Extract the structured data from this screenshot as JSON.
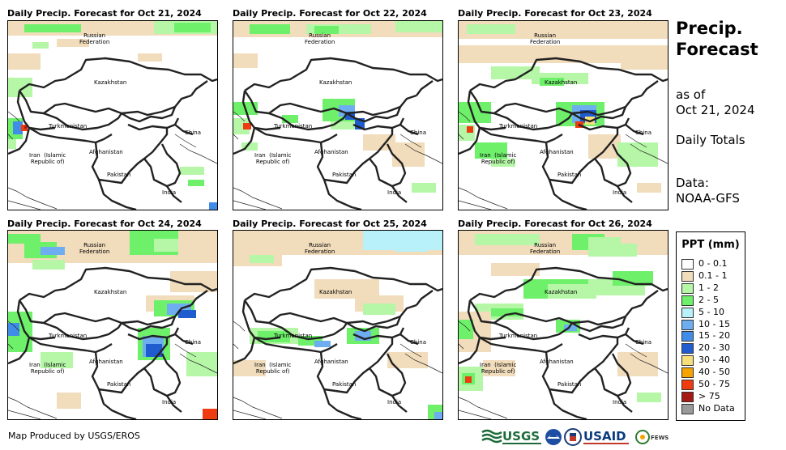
{
  "panels": [
    {
      "title": "Daily Precip. Forecast for Oct 21, 2024"
    },
    {
      "title": "Daily Precip. Forecast for Oct 22, 2024"
    },
    {
      "title": "Daily Precip. Forecast for Oct 23, 2024"
    },
    {
      "title": "Daily Precip. Forecast for Oct 24, 2024"
    },
    {
      "title": "Daily Precip. Forecast for Oct 25, 2024"
    },
    {
      "title": "Daily Precip. Forecast for Oct 26, 2024"
    }
  ],
  "map_labels": {
    "russia": "Russian\nFederation",
    "kazakhstan": "Kazakhstan",
    "turkmenistan": "Turkmenistan",
    "china": "China",
    "iran": "Iran  (Islamic\nRepublic of)",
    "afghanistan": "Afghanistan",
    "pakistan": "Pakistan",
    "india": "India"
  },
  "side": {
    "title": "Precip. Forecast",
    "as_of_label": "as of",
    "date": "Oct 21, 2024",
    "totals": "Daily Totals",
    "data_label": "Data:",
    "data_source": "NOAA-GFS"
  },
  "legend": {
    "title": "PPT (mm)",
    "items": [
      {
        "label": "0 - 0.1",
        "color": "#ffffff"
      },
      {
        "label": "0.1 - 1",
        "color": "#f1dcbb"
      },
      {
        "label": "1 - 2",
        "color": "#b5f7a6"
      },
      {
        "label": "2 - 5",
        "color": "#6ef06a"
      },
      {
        "label": "5 - 10",
        "color": "#b8f1fa"
      },
      {
        "label": "10 - 15",
        "color": "#6eaef0"
      },
      {
        "label": "15 - 20",
        "color": "#3f8de8"
      },
      {
        "label": "20 - 30",
        "color": "#1f5ccf"
      },
      {
        "label": "30 - 40",
        "color": "#f7e07a"
      },
      {
        "label": "40 - 50",
        "color": "#f5a300"
      },
      {
        "label": "50 - 75",
        "color": "#ee3b10"
      },
      {
        "label": "> 75",
        "color": "#a51a12"
      },
      {
        "label": "No Data",
        "color": "#9a9a9a"
      }
    ]
  },
  "footer": {
    "credit": "Map Produced by USGS/EROS",
    "logos": {
      "usgs": "USGS",
      "usaid": "USAID",
      "fews": "FEWS NET"
    }
  }
}
